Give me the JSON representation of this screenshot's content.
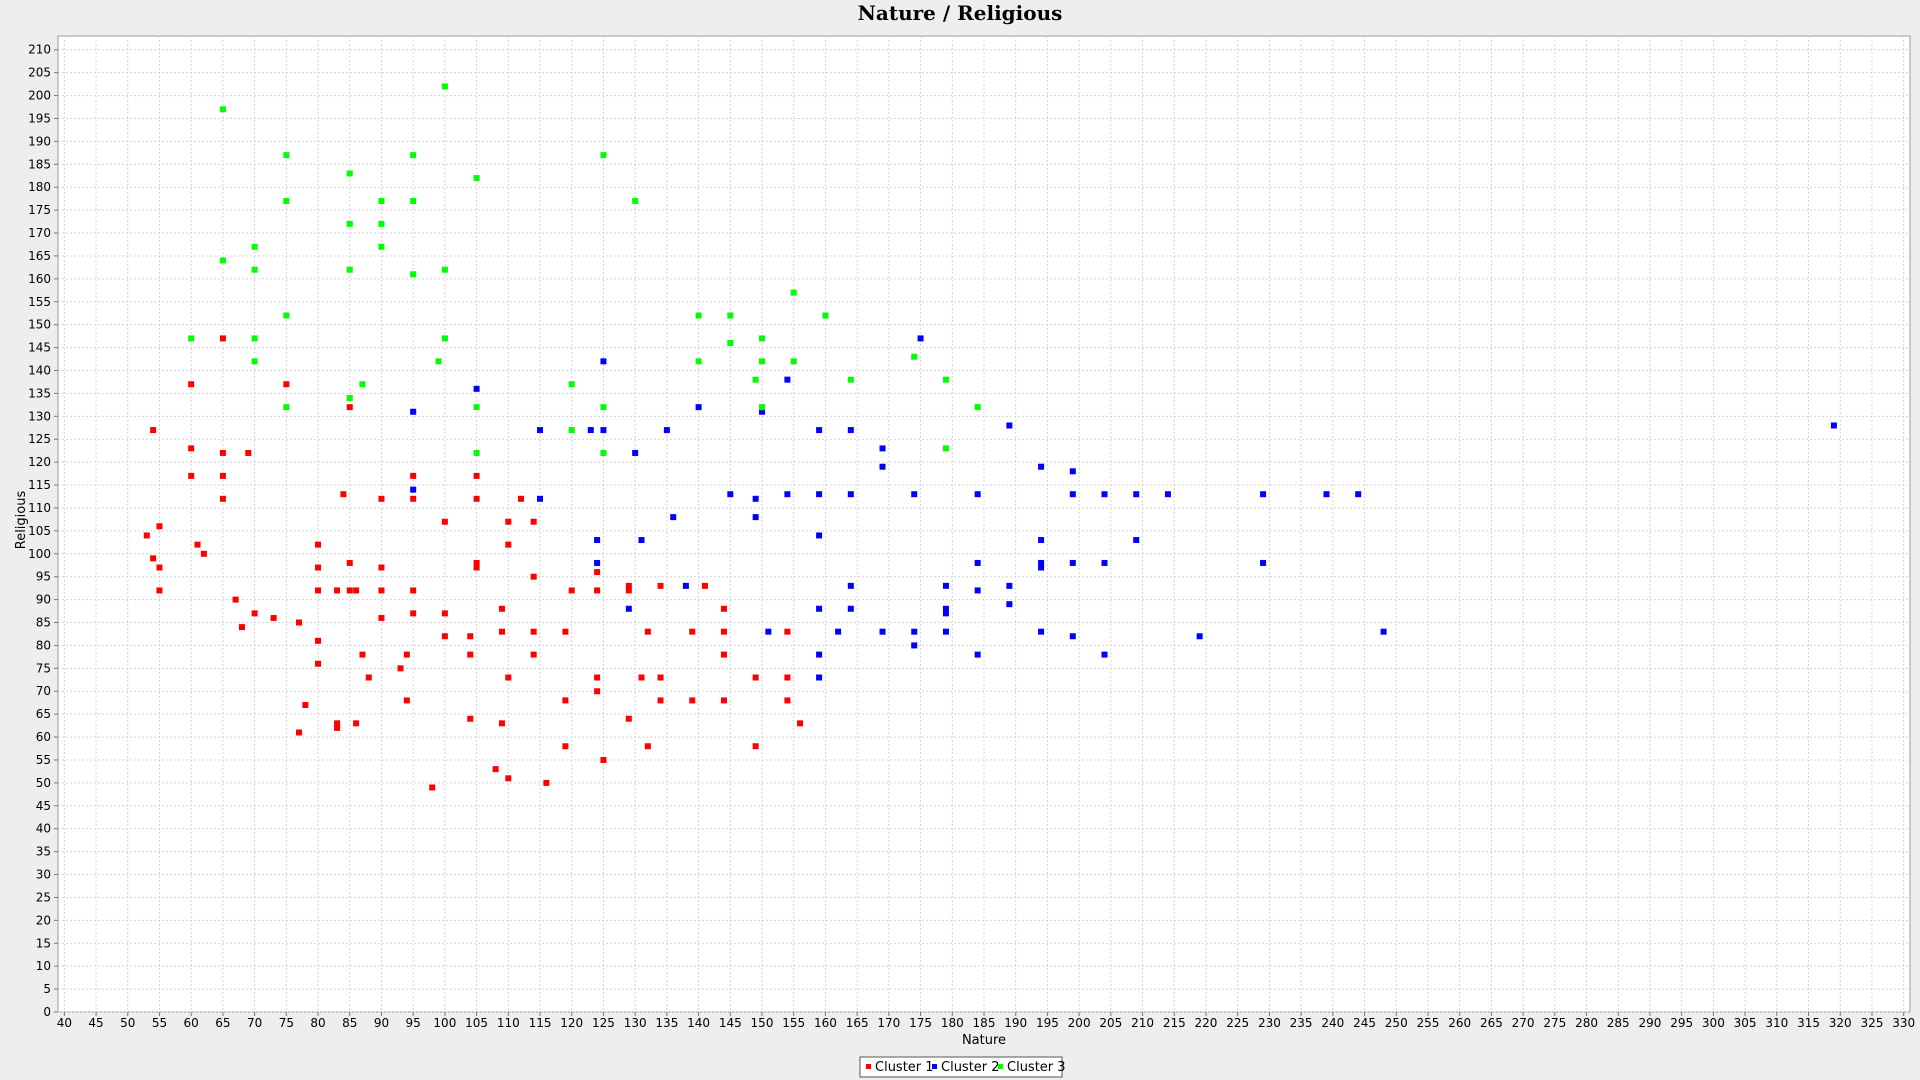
{
  "chart_data": {
    "type": "scatter",
    "title": "Nature / Religious",
    "xlabel": "Nature",
    "ylabel": "Religious",
    "xlim": [
      39,
      331
    ],
    "ylim": [
      0,
      213
    ],
    "xticks": [
      40,
      45,
      50,
      55,
      60,
      65,
      70,
      75,
      80,
      85,
      90,
      95,
      100,
      105,
      110,
      115,
      120,
      125,
      130,
      135,
      140,
      145,
      150,
      155,
      160,
      165,
      170,
      175,
      180,
      185,
      190,
      195,
      200,
      205,
      210,
      215,
      220,
      225,
      230,
      235,
      240,
      245,
      250,
      255,
      260,
      265,
      270,
      275,
      280,
      285,
      290,
      295,
      300,
      305,
      310,
      315,
      320,
      325,
      330
    ],
    "yticks": [
      0,
      5,
      10,
      15,
      20,
      25,
      30,
      35,
      40,
      45,
      50,
      55,
      60,
      65,
      70,
      75,
      80,
      85,
      90,
      95,
      100,
      105,
      110,
      115,
      120,
      125,
      130,
      135,
      140,
      145,
      150,
      155,
      160,
      165,
      170,
      175,
      180,
      185,
      190,
      195,
      200,
      205,
      210
    ],
    "grid": true,
    "legend_position": "bottom-center",
    "series": [
      {
        "name": "Cluster 1",
        "color": "#ff0000",
        "points": [
          [
            54,
            127
          ],
          [
            60,
            137
          ],
          [
            65,
            147
          ],
          [
            75,
            137
          ],
          [
            85,
            132
          ],
          [
            60,
            123
          ],
          [
            65,
            122
          ],
          [
            69,
            122
          ],
          [
            60,
            117
          ],
          [
            65,
            117
          ],
          [
            65,
            112
          ],
          [
            84,
            113
          ],
          [
            90,
            112
          ],
          [
            95,
            117
          ],
          [
            95,
            112
          ],
          [
            105,
            117
          ],
          [
            105,
            112
          ],
          [
            112,
            112
          ],
          [
            53,
            104
          ],
          [
            55,
            106
          ],
          [
            54,
            99
          ],
          [
            61,
            102
          ],
          [
            62,
            100
          ],
          [
            80,
            102
          ],
          [
            80,
            97
          ],
          [
            55,
            97
          ],
          [
            85,
            98
          ],
          [
            90,
            97
          ],
          [
            100,
            107
          ],
          [
            105,
            98
          ],
          [
            105,
            97
          ],
          [
            110,
            107
          ],
          [
            110,
            102
          ],
          [
            114,
            107
          ],
          [
            114,
            95
          ],
          [
            55,
            92
          ],
          [
            80,
            92
          ],
          [
            83,
            92
          ],
          [
            85,
            92
          ],
          [
            86,
            92
          ],
          [
            90,
            92
          ],
          [
            95,
            92
          ],
          [
            120,
            92
          ],
          [
            124,
            96
          ],
          [
            124,
            92
          ],
          [
            129,
            93
          ],
          [
            129,
            92
          ],
          [
            134,
            93
          ],
          [
            141,
            93
          ],
          [
            67,
            90
          ],
          [
            70,
            87
          ],
          [
            73,
            86
          ],
          [
            68,
            84
          ],
          [
            77,
            85
          ],
          [
            80,
            81
          ],
          [
            90,
            86
          ],
          [
            95,
            87
          ],
          [
            100,
            87
          ],
          [
            100,
            82
          ],
          [
            104,
            82
          ],
          [
            109,
            88
          ],
          [
            109,
            83
          ],
          [
            114,
            83
          ],
          [
            119,
            83
          ],
          [
            132,
            83
          ],
          [
            139,
            83
          ],
          [
            144,
            88
          ],
          [
            144,
            83
          ],
          [
            154,
            83
          ],
          [
            80,
            76
          ],
          [
            87,
            78
          ],
          [
            88,
            73
          ],
          [
            93,
            75
          ],
          [
            94,
            78
          ],
          [
            104,
            78
          ],
          [
            110,
            73
          ],
          [
            114,
            78
          ],
          [
            124,
            73
          ],
          [
            124,
            70
          ],
          [
            131,
            73
          ],
          [
            134,
            73
          ],
          [
            144,
            78
          ],
          [
            149,
            73
          ],
          [
            154,
            73
          ],
          [
            78,
            67
          ],
          [
            77,
            61
          ],
          [
            83,
            63
          ],
          [
            83,
            62
          ],
          [
            86,
            63
          ],
          [
            94,
            68
          ],
          [
            104,
            64
          ],
          [
            109,
            63
          ],
          [
            119,
            68
          ],
          [
            129,
            64
          ],
          [
            134,
            68
          ],
          [
            139,
            68
          ],
          [
            144,
            68
          ],
          [
            154,
            68
          ],
          [
            156,
            63
          ],
          [
            119,
            58
          ],
          [
            132,
            58
          ],
          [
            149,
            58
          ],
          [
            108,
            53
          ],
          [
            110,
            51
          ],
          [
            116,
            50
          ],
          [
            98,
            49
          ],
          [
            125,
            55
          ]
        ]
      },
      {
        "name": "Cluster 2",
        "color": "#0000ff",
        "points": [
          [
            175,
            147
          ],
          [
            125,
            142
          ],
          [
            105,
            136
          ],
          [
            154,
            138
          ],
          [
            95,
            131
          ],
          [
            140,
            132
          ],
          [
            150,
            131
          ],
          [
            115,
            127
          ],
          [
            123,
            127
          ],
          [
            125,
            127
          ],
          [
            135,
            127
          ],
          [
            159,
            127
          ],
          [
            164,
            127
          ],
          [
            189,
            128
          ],
          [
            319,
            128
          ],
          [
            130,
            122
          ],
          [
            169,
            123
          ],
          [
            169,
            119
          ],
          [
            194,
            119
          ],
          [
            199,
            118
          ],
          [
            95,
            114
          ],
          [
            115,
            112
          ],
          [
            145,
            113
          ],
          [
            149,
            112
          ],
          [
            154,
            113
          ],
          [
            159,
            113
          ],
          [
            164,
            113
          ],
          [
            174,
            113
          ],
          [
            184,
            113
          ],
          [
            199,
            113
          ],
          [
            204,
            113
          ],
          [
            209,
            113
          ],
          [
            214,
            113
          ],
          [
            229,
            113
          ],
          [
            239,
            113
          ],
          [
            244,
            113
          ],
          [
            136,
            108
          ],
          [
            149,
            108
          ],
          [
            124,
            103
          ],
          [
            131,
            103
          ],
          [
            159,
            104
          ],
          [
            194,
            103
          ],
          [
            209,
            103
          ],
          [
            124,
            98
          ],
          [
            184,
            98
          ],
          [
            194,
            98
          ],
          [
            194,
            97
          ],
          [
            199,
            98
          ],
          [
            204,
            98
          ],
          [
            229,
            98
          ],
          [
            138,
            93
          ],
          [
            164,
            93
          ],
          [
            179,
            93
          ],
          [
            189,
            93
          ],
          [
            129,
            88
          ],
          [
            159,
            88
          ],
          [
            164,
            88
          ],
          [
            179,
            88
          ],
          [
            179,
            87
          ],
          [
            189,
            89
          ],
          [
            184,
            92
          ],
          [
            151,
            83
          ],
          [
            162,
            83
          ],
          [
            169,
            83
          ],
          [
            174,
            83
          ],
          [
            179,
            83
          ],
          [
            194,
            83
          ],
          [
            199,
            82
          ],
          [
            219,
            82
          ],
          [
            248,
            83
          ],
          [
            174,
            80
          ],
          [
            159,
            78
          ],
          [
            184,
            78
          ],
          [
            204,
            78
          ],
          [
            159,
            73
          ]
        ]
      },
      {
        "name": "Cluster 3",
        "color": "#00ff00",
        "points": [
          [
            100,
            202
          ],
          [
            65,
            197
          ],
          [
            75,
            187
          ],
          [
            95,
            187
          ],
          [
            125,
            187
          ],
          [
            85,
            183
          ],
          [
            105,
            182
          ],
          [
            75,
            177
          ],
          [
            90,
            177
          ],
          [
            95,
            177
          ],
          [
            130,
            177
          ],
          [
            85,
            172
          ],
          [
            90,
            172
          ],
          [
            70,
            167
          ],
          [
            90,
            167
          ],
          [
            65,
            164
          ],
          [
            70,
            162
          ],
          [
            85,
            162
          ],
          [
            95,
            161
          ],
          [
            100,
            162
          ],
          [
            155,
            157
          ],
          [
            75,
            152
          ],
          [
            140,
            152
          ],
          [
            145,
            152
          ],
          [
            160,
            152
          ],
          [
            60,
            147
          ],
          [
            70,
            147
          ],
          [
            100,
            147
          ],
          [
            145,
            146
          ],
          [
            150,
            147
          ],
          [
            70,
            142
          ],
          [
            99,
            142
          ],
          [
            140,
            142
          ],
          [
            150,
            142
          ],
          [
            155,
            142
          ],
          [
            174,
            143
          ],
          [
            149,
            138
          ],
          [
            164,
            138
          ],
          [
            179,
            138
          ],
          [
            87,
            137
          ],
          [
            120,
            137
          ],
          [
            85,
            134
          ],
          [
            75,
            132
          ],
          [
            105,
            132
          ],
          [
            125,
            132
          ],
          [
            150,
            132
          ],
          [
            184,
            132
          ],
          [
            120,
            127
          ],
          [
            105,
            122
          ],
          [
            125,
            122
          ],
          [
            179,
            123
          ]
        ]
      }
    ]
  }
}
